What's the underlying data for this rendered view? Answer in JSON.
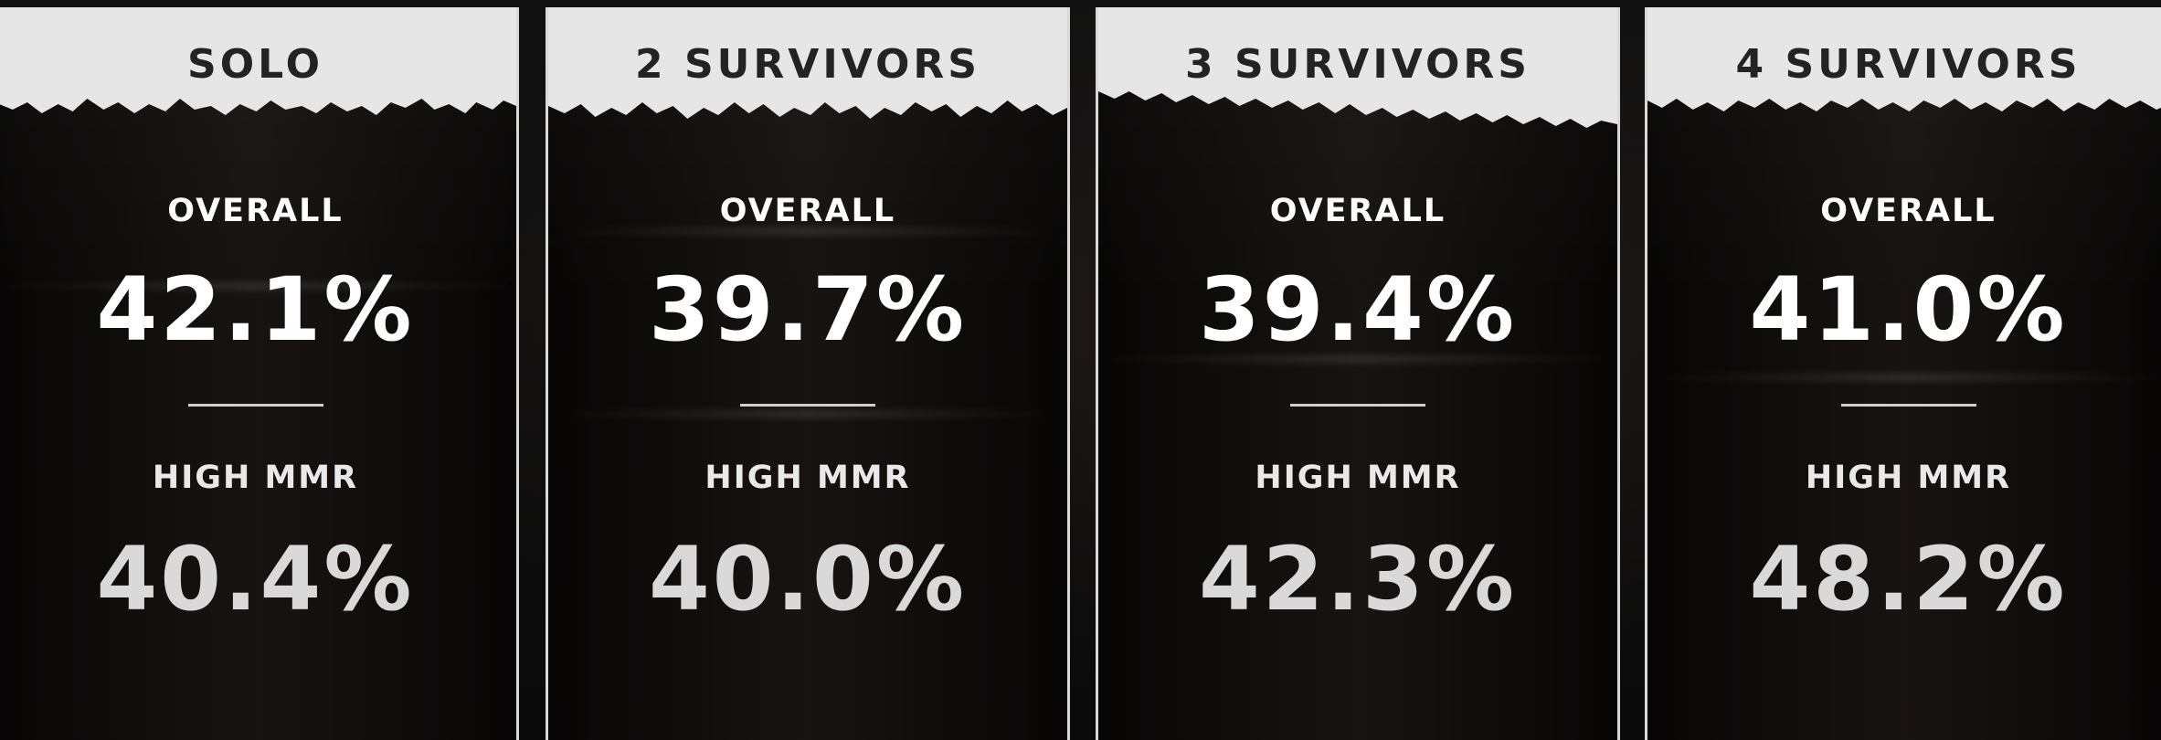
{
  "columns": [
    {
      "title": "SOLO",
      "overall_label": "OVERALL",
      "overall_value": "42.1%",
      "high_label": "HIGH MMR",
      "high_value": "40.4%"
    },
    {
      "title": "2 SURVIVORS",
      "overall_label": "OVERALL",
      "overall_value": "39.7%",
      "high_label": "HIGH MMR",
      "high_value": "40.0%"
    },
    {
      "title": "3 SURVIVORS",
      "overall_label": "OVERALL",
      "overall_value": "39.4%",
      "high_label": "HIGH MMR",
      "high_value": "42.3%"
    },
    {
      "title": "4 SURVIVORS",
      "overall_label": "OVERALL",
      "overall_value": "41.0%",
      "high_label": "HIGH MMR",
      "high_value": "48.2%"
    }
  ],
  "colors": {
    "header_paper": "#e6e6e6",
    "header_text": "#232323",
    "value_text": "#ffffff",
    "high_value_text": "#d9d9d9",
    "card_border": "#d8d8d8"
  }
}
